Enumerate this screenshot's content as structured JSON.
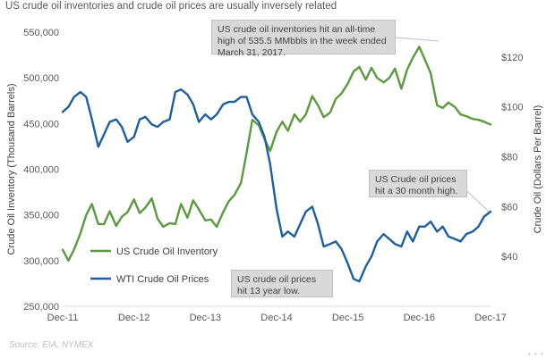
{
  "chart_data": {
    "type": "line",
    "title": "US crude oil inventories and crude oil prices are usually inversely related",
    "xlabel": "",
    "ylabel": "Crude Oil Inventory  (Thousand  Barrels)",
    "y2label": "Crude Oil (Dollars Per Barrel)",
    "x_ticks": [
      "Dec-11",
      "Dec-12",
      "Dec-13",
      "Dec-14",
      "Dec-15",
      "Dec-16",
      "Dec-17"
    ],
    "ylim": [
      250000,
      550000
    ],
    "y_ticks": [
      "250,000",
      "300,000",
      "350,000",
      "400,000",
      "450,000",
      "500,000",
      "550,000"
    ],
    "y2lim": [
      20,
      130
    ],
    "y2_ticks": [
      "$40",
      "$60",
      "$80",
      "$100",
      "$120"
    ],
    "legend_position": "lower-left",
    "grid": false,
    "series": [
      {
        "name": "US Crude Oil Inventory",
        "color": "#5b9a3f",
        "axis": "left",
        "x": [
          2011.92,
          2012.0,
          2012.08,
          2012.17,
          2012.25,
          2012.33,
          2012.42,
          2012.5,
          2012.58,
          2012.67,
          2012.75,
          2012.83,
          2012.92,
          2013.0,
          2013.08,
          2013.17,
          2013.25,
          2013.33,
          2013.42,
          2013.5,
          2013.58,
          2013.67,
          2013.75,
          2013.83,
          2013.92,
          2014.0,
          2014.08,
          2014.17,
          2014.25,
          2014.33,
          2014.42,
          2014.5,
          2014.58,
          2014.67,
          2014.75,
          2014.83,
          2014.92,
          2015.0,
          2015.08,
          2015.17,
          2015.25,
          2015.33,
          2015.42,
          2015.5,
          2015.58,
          2015.67,
          2015.75,
          2015.83,
          2015.92,
          2016.0,
          2016.08,
          2016.17,
          2016.25,
          2016.33,
          2016.42,
          2016.5,
          2016.58,
          2016.67,
          2016.75,
          2016.83,
          2016.92,
          2017.0,
          2017.08,
          2017.17,
          2017.25,
          2017.33,
          2017.42,
          2017.5,
          2017.58,
          2017.67,
          2017.75,
          2017.83,
          2017.92
        ],
        "values": [
          312000,
          300000,
          312000,
          330000,
          350000,
          362000,
          340000,
          340000,
          354000,
          338000,
          348000,
          353000,
          367000,
          352000,
          358000,
          368000,
          346000,
          337000,
          341000,
          340000,
          362000,
          347000,
          366000,
          356000,
          344000,
          345000,
          337000,
          353000,
          365000,
          372000,
          385000,
          418000,
          454000,
          448000,
          433000,
          420000,
          441000,
          452000,
          442000,
          460000,
          452000,
          460000,
          480000,
          470000,
          457000,
          462000,
          477000,
          483000,
          494000,
          507000,
          512000,
          498000,
          511000,
          500000,
          495000,
          500000,
          510000,
          488000,
          509000,
          522000,
          534000,
          520000,
          505000,
          470000,
          467000,
          473000,
          468000,
          460000,
          458000,
          455000,
          454000,
          452000,
          449000
        ],
        "annotation": "US crude oil inventories hit an all-time high of 535.5 MMbbls in the week ended March 31, 2017."
      },
      {
        "name": "WTI Crude Oil Prices",
        "color": "#1f5fa0",
        "axis": "right",
        "x": [
          2011.92,
          2012.0,
          2012.08,
          2012.17,
          2012.25,
          2012.33,
          2012.42,
          2012.5,
          2012.58,
          2012.67,
          2012.75,
          2012.83,
          2012.92,
          2013.0,
          2013.08,
          2013.17,
          2013.25,
          2013.33,
          2013.42,
          2013.5,
          2013.58,
          2013.67,
          2013.75,
          2013.83,
          2013.92,
          2014.0,
          2014.08,
          2014.17,
          2014.25,
          2014.33,
          2014.42,
          2014.5,
          2014.58,
          2014.67,
          2014.75,
          2014.83,
          2014.92,
          2015.0,
          2015.08,
          2015.17,
          2015.25,
          2015.33,
          2015.42,
          2015.5,
          2015.58,
          2015.67,
          2015.75,
          2015.83,
          2015.92,
          2016.0,
          2016.08,
          2016.17,
          2016.25,
          2016.33,
          2016.42,
          2016.5,
          2016.58,
          2016.67,
          2016.75,
          2016.83,
          2016.92,
          2017.0,
          2017.08,
          2017.17,
          2017.25,
          2017.33,
          2017.42,
          2017.5,
          2017.58,
          2017.67,
          2017.75,
          2017.83,
          2017.92
        ],
        "values": [
          98,
          100,
          104,
          106,
          104,
          95,
          84,
          89,
          94,
          95,
          92,
          86,
          88,
          95,
          96,
          93,
          92,
          94,
          95,
          106,
          107,
          105,
          101,
          94,
          97,
          95,
          97,
          101,
          102,
          102,
          104,
          104,
          97,
          94,
          88,
          77,
          59,
          48,
          50,
          48,
          53,
          58,
          60,
          53,
          44,
          45,
          46,
          43,
          37,
          31,
          30,
          36,
          40,
          46,
          49,
          47,
          45,
          44,
          50,
          46,
          52,
          52,
          54,
          50,
          52,
          48,
          47,
          46,
          49,
          50,
          52,
          56,
          58
        ],
        "annotations": [
          "US Crude oil prices hit a 30 month high.",
          "US crude oil prices hit 13 year low."
        ]
      }
    ]
  },
  "source": "Source: EIA, NYMEX",
  "corner_mark": "• • •"
}
